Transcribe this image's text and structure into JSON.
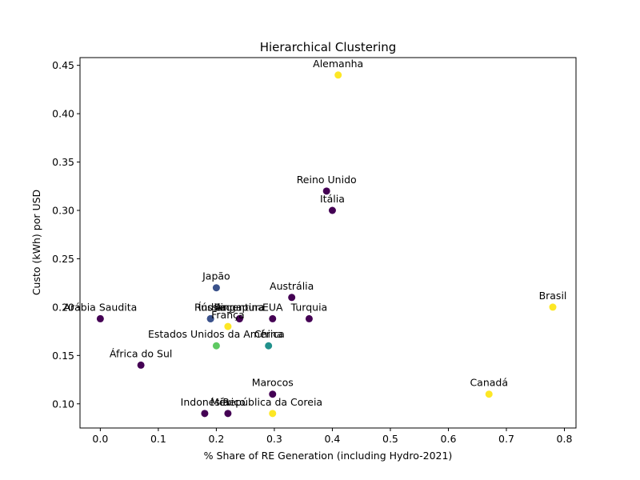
{
  "chart_data": {
    "type": "scatter",
    "title": "Hierarchical Clustering",
    "xlabel": "% Share of RE Generation (including Hydro-2021)",
    "ylabel": "Custo (kWh) por USD",
    "xlim": [
      -0.035,
      0.82
    ],
    "ylim": [
      0.075,
      0.458
    ],
    "xticks": [
      0.0,
      0.1,
      0.2,
      0.3,
      0.4,
      0.5,
      0.6,
      0.7,
      0.8
    ],
    "xtick_labels": [
      "0.0",
      "0.1",
      "0.2",
      "0.3",
      "0.4",
      "0.5",
      "0.6",
      "0.7",
      "0.8"
    ],
    "yticks": [
      0.1,
      0.15,
      0.2,
      0.25,
      0.3,
      0.35,
      0.4,
      0.45
    ],
    "ytick_labels": [
      "0.10",
      "0.15",
      "0.20",
      "0.25",
      "0.30",
      "0.35",
      "0.40",
      "0.45"
    ],
    "grid": false,
    "colormap": {
      "0": "#440154",
      "1": "#3b528b",
      "2": "#21918c",
      "3": "#5ec962",
      "4": "#fde725"
    },
    "points": [
      {
        "label": "Alemanha",
        "x": 0.41,
        "y": 0.44,
        "cluster": 4
      },
      {
        "label": "Reino Unido",
        "x": 0.39,
        "y": 0.32,
        "cluster": 0
      },
      {
        "label": "Itália",
        "x": 0.4,
        "y": 0.3,
        "cluster": 0
      },
      {
        "label": "Japão",
        "x": 0.2,
        "y": 0.22,
        "cluster": 1
      },
      {
        "label": "Austrália",
        "x": 0.33,
        "y": 0.21,
        "cluster": 0
      },
      {
        "label": "Brasil",
        "x": 0.78,
        "y": 0.2,
        "cluster": 4
      },
      {
        "label": "Arábia Saudita",
        "x": 0.0,
        "y": 0.188,
        "cluster": 0
      },
      {
        "label": "Índia",
        "x": 0.19,
        "y": 0.188,
        "cluster": 1
      },
      {
        "label": "Rússia",
        "x": 0.19,
        "y": 0.188,
        "cluster": 1
      },
      {
        "label": "Singapura",
        "x": 0.24,
        "y": 0.188,
        "cluster": 0
      },
      {
        "label": "Argentina",
        "x": 0.24,
        "y": 0.188,
        "cluster": 0
      },
      {
        "label": "EUA",
        "x": 0.297,
        "y": 0.188,
        "cluster": 0
      },
      {
        "label": "Turquia",
        "x": 0.36,
        "y": 0.188,
        "cluster": 0
      },
      {
        "label": "França",
        "x": 0.22,
        "y": 0.18,
        "cluster": 4
      },
      {
        "label": "Estados Unidos da América",
        "x": 0.2,
        "y": 0.16,
        "cluster": 3
      },
      {
        "label": "China",
        "x": 0.29,
        "y": 0.16,
        "cluster": 2
      },
      {
        "label": "África do Sul",
        "x": 0.07,
        "y": 0.14,
        "cluster": 0
      },
      {
        "label": "Marocos",
        "x": 0.297,
        "y": 0.11,
        "cluster": 0
      },
      {
        "label": "Canadá",
        "x": 0.67,
        "y": 0.11,
        "cluster": 4
      },
      {
        "label": "Indonésia",
        "x": 0.18,
        "y": 0.09,
        "cluster": 0
      },
      {
        "label": "México",
        "x": 0.22,
        "y": 0.09,
        "cluster": 0
      },
      {
        "label": "República da Coreia",
        "x": 0.297,
        "y": 0.09,
        "cluster": 4
      }
    ]
  }
}
